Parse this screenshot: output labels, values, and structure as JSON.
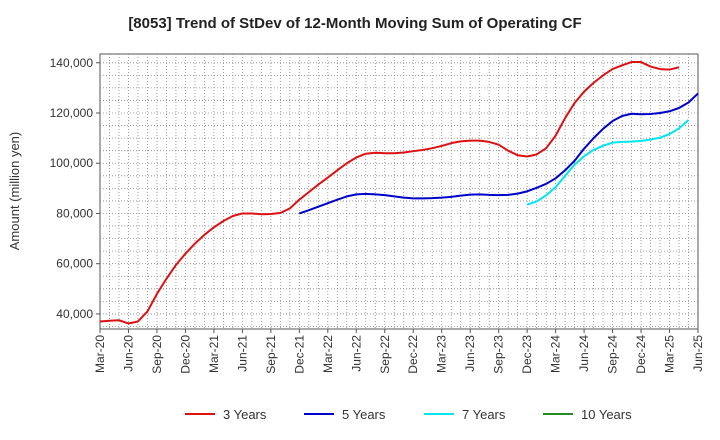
{
  "chart_data": {
    "type": "line",
    "title": "[8053]  Trend of StDev of 12-Month Moving Sum of Operating CF",
    "ylabel": "Amount (million yen)",
    "xlabel": "",
    "x_tick_labels": [
      "Mar-20",
      "Jun-20",
      "Sep-20",
      "Dec-20",
      "Mar-21",
      "Jun-21",
      "Sep-21",
      "Dec-21",
      "Mar-22",
      "Jun-22",
      "Sep-22",
      "Dec-22",
      "Mar-23",
      "Jun-23",
      "Sep-23",
      "Dec-23",
      "Mar-24",
      "Jun-24",
      "Sep-24",
      "Dec-24",
      "Mar-25",
      "Jun-25"
    ],
    "y_ticks": [
      40000,
      60000,
      80000,
      100000,
      120000,
      140000
    ],
    "y_tick_labels": [
      "40,000",
      "60,000",
      "80,000",
      "100,000",
      "120,000",
      "140,000"
    ],
    "ylim": [
      34000,
      143500
    ],
    "grid": true,
    "legend_position": "bottom",
    "series": [
      {
        "name": "3 Years",
        "color": "#dd1111",
        "start_index": 0,
        "values": [
          37000,
          37300,
          37500,
          36200,
          37000,
          41000,
          48000,
          54000,
          59500,
          64000,
          68000,
          71500,
          74500,
          77000,
          79000,
          80000,
          80000,
          79700,
          79800,
          80200,
          82000,
          85500,
          88500,
          91500,
          94300,
          97200,
          100000,
          102300,
          103800,
          104200,
          104000,
          104000,
          104300,
          104800,
          105300,
          106000,
          106900,
          108000,
          108700,
          109000,
          109000,
          108500,
          107400,
          105000,
          103200,
          102700,
          103500,
          106000,
          111000,
          118000,
          124000,
          128500,
          132000,
          135000,
          137500,
          139000,
          140300,
          140300,
          138500,
          137500,
          137300,
          138200
        ]
      },
      {
        "name": "5 Years",
        "color": "#0000cc",
        "start_index": 21,
        "values": [
          80000,
          81300,
          82700,
          84100,
          85500,
          86800,
          87600,
          87800,
          87600,
          87300,
          86800,
          86300,
          86000,
          86000,
          86100,
          86300,
          86600,
          87100,
          87500,
          87600,
          87400,
          87300,
          87400,
          87900,
          88800,
          90200,
          91800,
          94000,
          97200,
          101000,
          105800,
          110000,
          113700,
          116800,
          118800,
          119700,
          119500,
          119600,
          120000,
          120700,
          122000,
          124200,
          127800
        ]
      },
      {
        "name": "7 Years",
        "color": "#00e5ee",
        "start_index": 45,
        "values": [
          83500,
          84800,
          87200,
          90500,
          95000,
          99400,
          102800,
          105300,
          107000,
          108200,
          108500,
          108600,
          108900,
          109400,
          110200,
          111600,
          113900,
          117200
        ]
      },
      {
        "name": "10 Years",
        "color": "#228b22",
        "start_index": 0,
        "values": []
      }
    ]
  }
}
